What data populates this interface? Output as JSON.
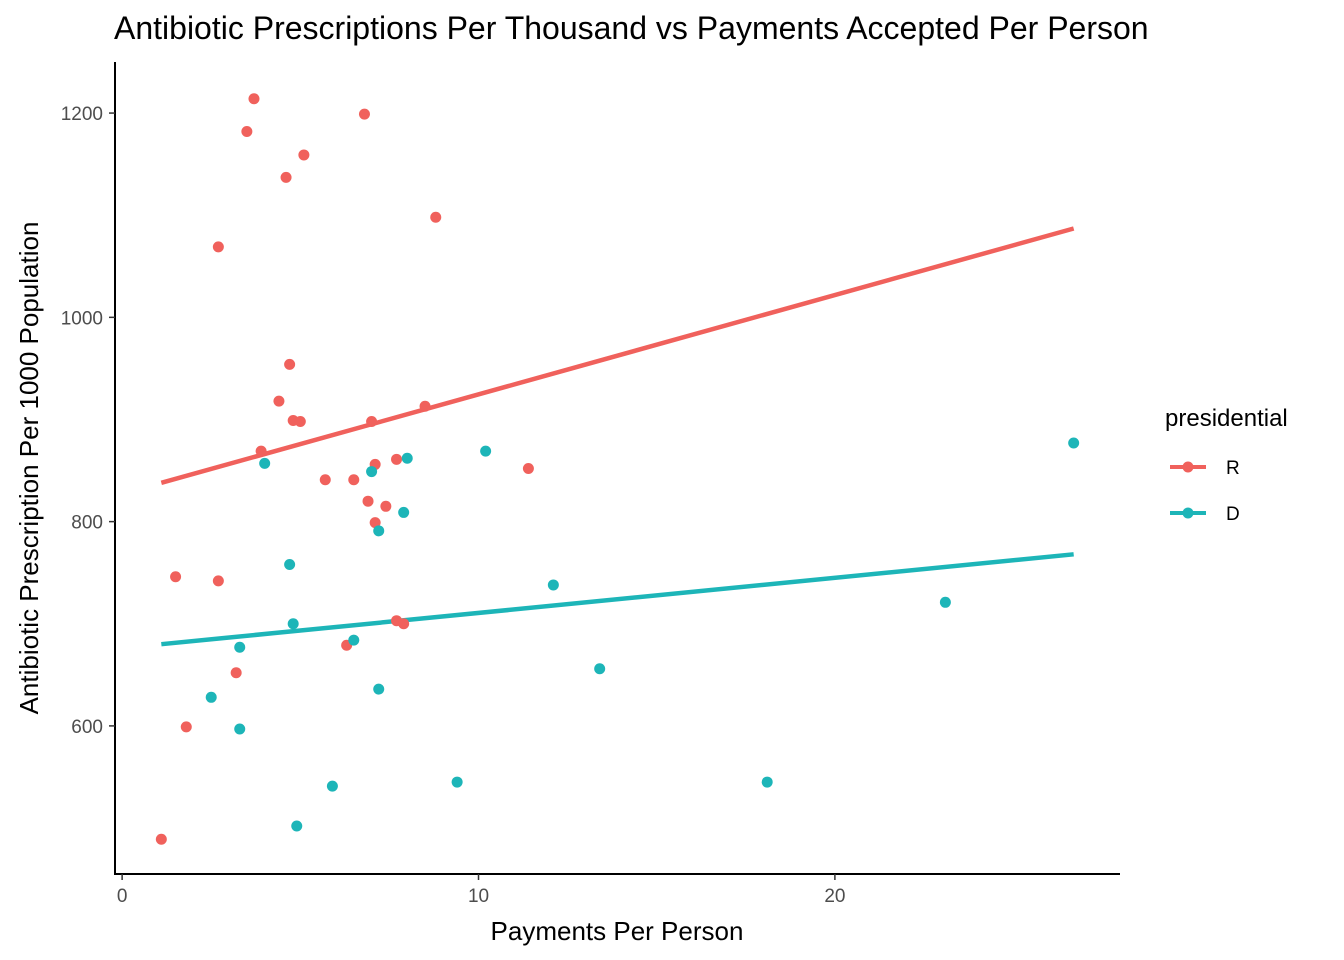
{
  "chart_data": {
    "type": "scatter",
    "title": "Antibiotic Prescriptions Per Thousand vs Payments Accepted Per Person",
    "xlabel": "Payments Per Person",
    "ylabel": "Antibiotic Prescription Per 1000 Population",
    "xlim": [
      -0.2,
      28
    ],
    "ylim": [
      455,
      1250
    ],
    "xticks": [
      0,
      10,
      20
    ],
    "yticks": [
      600,
      800,
      1000,
      1200
    ],
    "grid": false,
    "legend": {
      "title": "presidential",
      "position": "right",
      "entries": [
        "R",
        "D"
      ]
    },
    "series": [
      {
        "name": "R",
        "color": "#F0615C",
        "points": [
          [
            3.7,
            1214
          ],
          [
            3.5,
            1182
          ],
          [
            6.8,
            1199
          ],
          [
            5.1,
            1159
          ],
          [
            4.6,
            1137
          ],
          [
            8.8,
            1098
          ],
          [
            2.7,
            1069
          ],
          [
            4.7,
            954
          ],
          [
            4.4,
            918
          ],
          [
            4.8,
            899
          ],
          [
            5.0,
            898
          ],
          [
            7.0,
            898
          ],
          [
            8.5,
            913
          ],
          [
            3.9,
            869
          ],
          [
            7.1,
            856
          ],
          [
            7.7,
            861
          ],
          [
            11.4,
            852
          ],
          [
            5.7,
            841
          ],
          [
            6.5,
            841
          ],
          [
            6.9,
            820
          ],
          [
            7.4,
            815
          ],
          [
            7.1,
            799
          ],
          [
            1.5,
            746
          ],
          [
            2.7,
            742
          ],
          [
            7.7,
            703
          ],
          [
            7.9,
            700
          ],
          [
            6.3,
            679
          ],
          [
            3.2,
            652
          ],
          [
            1.8,
            599
          ],
          [
            1.1,
            489
          ]
        ],
        "fit": [
          [
            1.1,
            838
          ],
          [
            26.7,
            1087
          ]
        ]
      },
      {
        "name": "D",
        "color": "#1DB5B8",
        "points": [
          [
            4.0,
            857
          ],
          [
            7.0,
            849
          ],
          [
            8.0,
            862
          ],
          [
            10.2,
            869
          ],
          [
            7.9,
            809
          ],
          [
            7.2,
            791
          ],
          [
            4.7,
            758
          ],
          [
            12.1,
            738
          ],
          [
            23.1,
            721
          ],
          [
            4.8,
            700
          ],
          [
            6.5,
            684
          ],
          [
            3.3,
            677
          ],
          [
            13.4,
            656
          ],
          [
            7.2,
            636
          ],
          [
            2.5,
            628
          ],
          [
            3.3,
            597
          ],
          [
            9.4,
            545
          ],
          [
            18.1,
            545
          ],
          [
            5.9,
            541
          ],
          [
            4.9,
            502
          ],
          [
            26.7,
            877
          ]
        ],
        "fit": [
          [
            1.1,
            680
          ],
          [
            26.7,
            768
          ]
        ]
      }
    ]
  }
}
